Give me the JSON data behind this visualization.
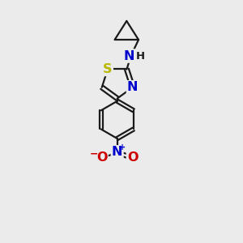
{
  "bg_color": "#ebebeb",
  "bond_color": "#1a1a1a",
  "bond_width": 1.6,
  "dbo": 0.013,
  "atom_colors": {
    "S": "#b8b800",
    "N": "#0000cc",
    "O": "#cc0000",
    "C": "#1a1a1a",
    "H": "#1a1a1a"
  },
  "font_size": 10.5,
  "fig_size": [
    3.0,
    3.0
  ],
  "dpi": 100
}
